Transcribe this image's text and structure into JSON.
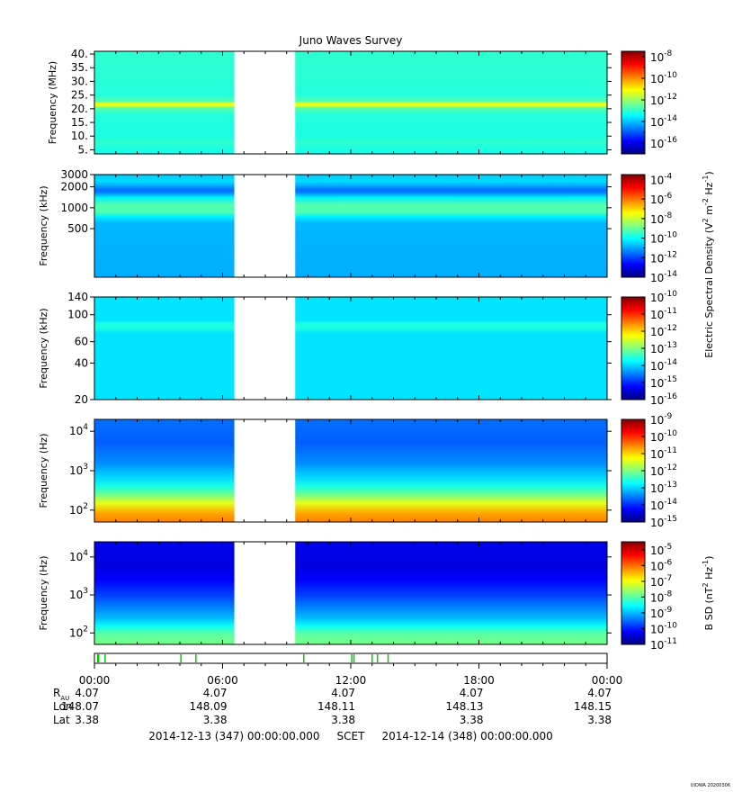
{
  "title": "Juno Waves Survey",
  "footer": "2014-12-13 (347) 00:00:00.000     SCET     2014-12-14 (348) 00:00:00.000",
  "credit": "UIOWA 20200306",
  "colorbar_shared_label": "Electric Spectral Density (V",
  "chart_data": [
    {
      "type": "heatmap",
      "ylabel": "Frequency (MHz)",
      "yscale": "linear",
      "yticks": [
        {
          "label": "40.",
          "value": 40
        },
        {
          "label": "35.",
          "value": 35
        },
        {
          "label": "30.",
          "value": 30
        },
        {
          "label": "25.",
          "value": 25
        },
        {
          "label": "20.",
          "value": 20
        },
        {
          "label": "15.",
          "value": 15
        },
        {
          "label": "10.",
          "value": 10
        },
        {
          "label": "5.",
          "value": 5
        }
      ],
      "ylim": [
        3.5,
        41
      ],
      "colorbar": {
        "type": "log",
        "exps": [
          -8,
          -10,
          -12,
          -14,
          -16
        ],
        "range": [
          -17,
          -7.5
        ]
      },
      "bands": [
        {
          "y": 3.5,
          "level": -13.3
        },
        {
          "y": 5,
          "level": -13.2
        },
        {
          "y": 8,
          "level": -13.0
        },
        {
          "y": 10,
          "level": -13.2
        },
        {
          "y": 18,
          "level": -13.1
        },
        {
          "y": 20.4,
          "level": -12.6
        },
        {
          "y": 21,
          "level": -11.3
        },
        {
          "y": 22,
          "level": -11.3
        },
        {
          "y": 22.6,
          "level": -12.6
        },
        {
          "y": 25,
          "level": -13.1
        },
        {
          "y": 41,
          "level": -13.0
        }
      ]
    },
    {
      "type": "heatmap",
      "ylabel": "Frequency (kHz)",
      "yscale": "log",
      "yticks": [
        {
          "label": "3000",
          "value": 3000
        },
        {
          "label": "2000",
          "value": 2000
        },
        {
          "label": "1000",
          "value": 1000
        },
        {
          "label": "500",
          "value": 500
        }
      ],
      "ylim": [
        100,
        3000
      ],
      "colorbar": {
        "type": "log",
        "exps": [
          -4,
          -6,
          -8,
          -10,
          -12,
          -14
        ],
        "range": [
          -14,
          -3.5
        ]
      },
      "bands": [
        {
          "y": 100,
          "level": -10.9
        },
        {
          "y": 600,
          "level": -10.8
        },
        {
          "y": 750,
          "level": -10.2
        },
        {
          "y": 850,
          "level": -9.3
        },
        {
          "y": 1100,
          "level": -9.2
        },
        {
          "y": 1400,
          "level": -10.2
        },
        {
          "y": 1650,
          "level": -11.3
        },
        {
          "y": 1800,
          "level": -11.6
        },
        {
          "y": 2050,
          "level": -11.0
        },
        {
          "y": 2400,
          "level": -10.4
        },
        {
          "y": 3000,
          "level": -10.6
        }
      ]
    },
    {
      "type": "heatmap",
      "ylabel": "Frequency (kHz)",
      "yscale": "log",
      "yticks": [
        {
          "label": "140",
          "value": 140
        },
        {
          "label": "100",
          "value": 100
        },
        {
          "label": "60",
          "value": 60
        },
        {
          "label": "40",
          "value": 40
        },
        {
          "label": "20",
          "value": 20
        }
      ],
      "ylim": [
        20,
        140
      ],
      "colorbar": {
        "type": "log",
        "exps": [
          -10,
          -11,
          -12,
          -13,
          -14,
          -15,
          -16
        ],
        "range": [
          -16,
          -10
        ]
      },
      "bands": [
        {
          "y": 20,
          "level": -13.9
        },
        {
          "y": 70,
          "level": -13.9
        },
        {
          "y": 78,
          "level": -13.6
        },
        {
          "y": 85,
          "level": -13.6
        },
        {
          "y": 90,
          "level": -13.9
        },
        {
          "y": 140,
          "level": -13.9
        }
      ]
    },
    {
      "type": "heatmap",
      "ylabel": "Frequency (Hz)",
      "yscale": "log",
      "yticks": [
        {
          "label": "10",
          "exp": "4",
          "value": 10000
        },
        {
          "label": "10",
          "exp": "3",
          "value": 1000
        },
        {
          "label": "10",
          "exp": "2",
          "value": 100
        }
      ],
      "ylim": [
        50,
        20000
      ],
      "colorbar": {
        "type": "log",
        "exps": [
          -9,
          -10,
          -11,
          -12,
          -13,
          -14,
          -15
        ],
        "range": [
          -15,
          -9
        ]
      },
      "bands": [
        {
          "y": 50,
          "level": -10.5
        },
        {
          "y": 80,
          "level": -10.7
        },
        {
          "y": 150,
          "level": -11.4
        },
        {
          "y": 250,
          "level": -12.1
        },
        {
          "y": 400,
          "level": -12.6
        },
        {
          "y": 700,
          "level": -13.0
        },
        {
          "y": 1500,
          "level": -13.4
        },
        {
          "y": 5000,
          "level": -13.7
        },
        {
          "y": 20000,
          "level": -13.6
        }
      ]
    },
    {
      "type": "heatmap",
      "ylabel": "Frequency (Hz)",
      "yscale": "log",
      "yticks": [
        {
          "label": "10",
          "exp": "4",
          "value": 10000
        },
        {
          "label": "10",
          "exp": "3",
          "value": 1000
        },
        {
          "label": "10",
          "exp": "2",
          "value": 100
        }
      ],
      "ylim": [
        50,
        25000
      ],
      "colorbar": {
        "type": "log",
        "exps": [
          -5,
          -6,
          -7,
          -8,
          -9,
          -10,
          -11
        ],
        "range": [
          -11,
          -4.5
        ]
      },
      "bands": [
        {
          "y": 50,
          "level": -7.8
        },
        {
          "y": 100,
          "level": -8.0
        },
        {
          "y": 150,
          "level": -8.5
        },
        {
          "y": 250,
          "level": -9.0
        },
        {
          "y": 500,
          "level": -9.4
        },
        {
          "y": 1000,
          "level": -9.8
        },
        {
          "y": 2500,
          "level": -10.2
        },
        {
          "y": 6000,
          "level": -10.4
        },
        {
          "y": 25000,
          "level": -10.3
        }
      ]
    }
  ],
  "colorbar_labels": [
    {
      "text": "Electric Spectral Density (V",
      "sup1": "2",
      "mid": " m",
      "sup2": "-2",
      "mid2": " Hz",
      "sup3": "-1",
      "end": ")"
    },
    {
      "text": "B SD (nT",
      "sup1": "2",
      "mid": " Hz",
      "sup2": "-1",
      "end": ")"
    }
  ],
  "time_axis": {
    "labels": [
      "00:00",
      "06:00",
      "12:00",
      "18:00",
      "00:00"
    ],
    "range_hours": [
      0,
      24
    ],
    "data_gap_hours": [
      6.55,
      9.4
    ],
    "mode_marks_hours": [
      0.15,
      0.2,
      0.5,
      4.05,
      4.75,
      9.8,
      12.05,
      12.15,
      13.0,
      13.25,
      13.75
    ]
  },
  "ephemeris": [
    {
      "label": "R",
      "sub": "AU",
      "values": [
        "4.07",
        "4.07",
        "4.07",
        "4.07",
        "4.07"
      ]
    },
    {
      "label": "Lon",
      "values": [
        "148.07",
        "148.09",
        "148.11",
        "148.13",
        "148.15"
      ]
    },
    {
      "label": "Lat",
      "values": [
        "3.38",
        "3.38",
        "3.38",
        "3.38",
        "3.38"
      ]
    }
  ]
}
